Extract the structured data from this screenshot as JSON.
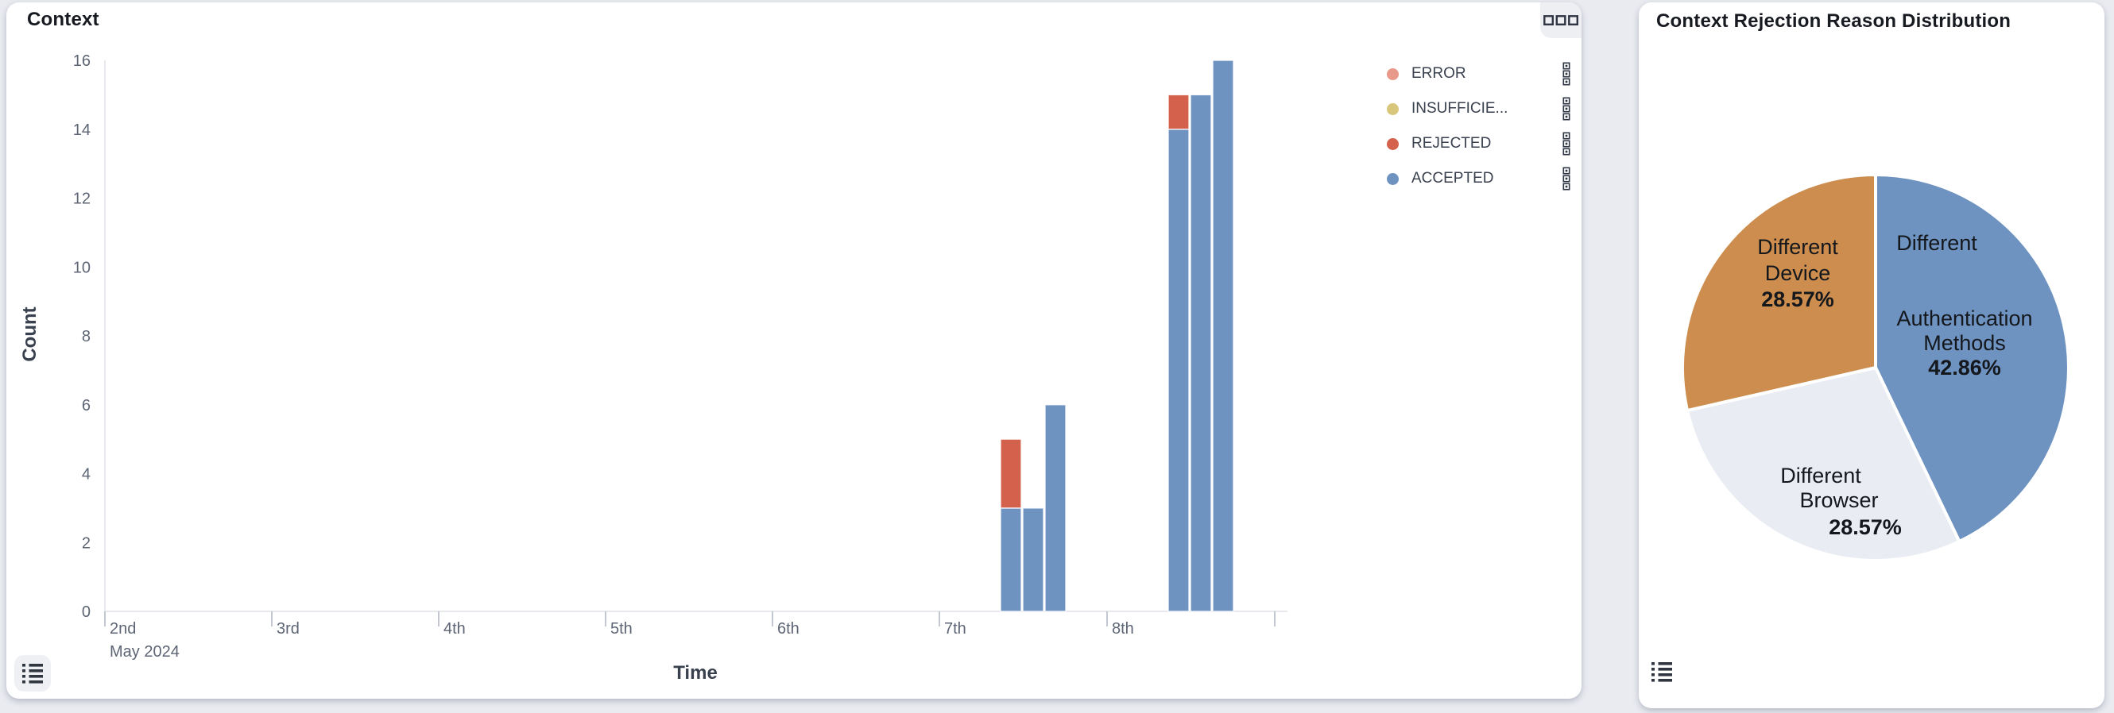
{
  "page_bg": "#e9ebf0",
  "bar_panel": {
    "title": "Context",
    "xlabel": "Time",
    "ylabel": "Count",
    "x_month_label": "May 2024",
    "legend": [
      {
        "label": "ERROR",
        "color": "#e8998a"
      },
      {
        "label": "INSUFFICIE...",
        "color": "#d8c77b"
      },
      {
        "label": "REJECTED",
        "color": "#d4614b"
      },
      {
        "label": "ACCEPTED",
        "color": "#6e93c1"
      }
    ],
    "corner_icon": "three-squares-icon",
    "bottom_icon": "list-icon"
  },
  "pie_panel": {
    "title": "Context Rejection Reason Distribution",
    "bottom_icon": "list-icon"
  },
  "chart_data": [
    {
      "type": "bar",
      "title": "Context",
      "xlabel": "Time",
      "ylabel": "Count",
      "stacked": true,
      "grid": false,
      "legend_position": "top-right",
      "ylim": [
        0,
        16
      ],
      "yticks": [
        0,
        2,
        4,
        6,
        8,
        10,
        12,
        14,
        16
      ],
      "xticks": [
        "2nd",
        "3rd",
        "4th",
        "5th",
        "6th",
        "7th",
        "8th"
      ],
      "x_month": "May 2024",
      "series_colors": {
        "ERROR": "#e8998a",
        "INSUFFICIENT": "#d8c77b",
        "REJECTED": "#d4614b",
        "ACCEPTED": "#6e93c1"
      },
      "bars": [
        {
          "day": "7th",
          "offset": 0,
          "segments": [
            {
              "series": "ACCEPTED",
              "value": 3
            },
            {
              "series": "REJECTED",
              "value": 2
            }
          ]
        },
        {
          "day": "7th",
          "offset": 1,
          "segments": [
            {
              "series": "ACCEPTED",
              "value": 3
            }
          ]
        },
        {
          "day": "7th",
          "offset": 2,
          "segments": [
            {
              "series": "ACCEPTED",
              "value": 6
            }
          ]
        },
        {
          "day": "8th",
          "offset": 0,
          "segments": [
            {
              "series": "ACCEPTED",
              "value": 14
            },
            {
              "series": "REJECTED",
              "value": 1
            }
          ]
        },
        {
          "day": "8th",
          "offset": 1,
          "segments": [
            {
              "series": "ACCEPTED",
              "value": 15
            }
          ]
        },
        {
          "day": "8th",
          "offset": 2,
          "segments": [
            {
              "series": "ACCEPTED",
              "value": 16
            }
          ]
        }
      ]
    },
    {
      "type": "pie",
      "title": "Context Rejection Reason Distribution",
      "slices": [
        {
          "label": "Different Authentication Methods",
          "pct": 42.86,
          "pct_label": "42.86%",
          "color": "#6e93c1",
          "lines": [
            "Different",
            "Authentication",
            "Methods"
          ]
        },
        {
          "label": "Different Browser",
          "pct": 28.57,
          "pct_label": "28.57%",
          "color": "#e9ecf2",
          "lines": [
            "Different",
            "Browser"
          ]
        },
        {
          "label": "Different Device",
          "pct": 28.57,
          "pct_label": "28.57%",
          "color": "#cc8d4e",
          "lines": [
            "Different",
            "Device"
          ]
        }
      ]
    }
  ]
}
